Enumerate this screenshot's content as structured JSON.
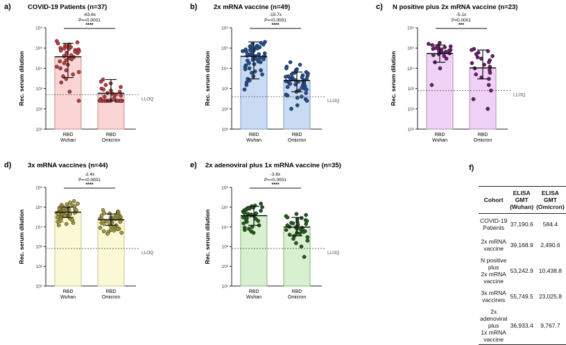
{
  "chart_data": [
    {
      "panel": "a)",
      "type": "scatter",
      "title": "COVID-19 Patients (n=37)",
      "fold": "-63.6x",
      "pvalue": "P=<0.0001",
      "stars": "****",
      "ylabel": "Rec. serum dilution",
      "ylim": [
        10,
        1000000
      ],
      "yscale": "log",
      "yticks": [
        "10¹",
        "10²",
        "10³",
        "10⁴",
        "10⁵",
        "10⁶"
      ],
      "lloq": 500,
      "lloq_label": "LLOQ",
      "categories": [
        "RBD\nWuhan",
        "RBD\nOmicron"
      ],
      "bar_color": "#fbd5d5",
      "bar_edge": "#d08a8a",
      "point_color": "#c0393b",
      "groups": [
        {
          "name": "RBD Wuhan",
          "gmt": 37190.6,
          "sd_low": 3500,
          "sd_high": 170000,
          "values": [
            220000,
            190000,
            170000,
            150000,
            130000,
            120000,
            110000,
            100000,
            95000,
            90000,
            85000,
            80000,
            75000,
            70000,
            65000,
            60000,
            55000,
            50000,
            45000,
            40000,
            36000,
            32000,
            28000,
            25000,
            22000,
            18000,
            15000,
            12000,
            10000,
            8000,
            6500,
            5000,
            4000,
            3000,
            2000,
            700,
            250
          ]
        },
        {
          "name": "RBD Omicron",
          "gmt": 584.4,
          "sd_low": 250,
          "sd_high": 2800,
          "values": [
            2800,
            2200,
            1800,
            1500,
            1200,
            1000,
            900,
            800,
            700,
            600,
            550,
            500,
            450,
            400,
            350,
            300,
            280,
            260,
            250,
            250,
            250,
            250,
            250,
            250,
            250,
            250,
            250,
            250,
            250,
            250,
            250,
            250,
            250,
            250,
            250,
            250,
            250
          ]
        }
      ]
    },
    {
      "panel": "b)",
      "type": "scatter",
      "title": "2x mRNA vaccine (n=49)",
      "fold": "-15.7x",
      "pvalue": "P=<0.0001",
      "stars": "****",
      "ylabel": "Rec. serum dilution",
      "ylim": [
        10,
        1000000
      ],
      "yscale": "log",
      "yticks": [
        "10¹",
        "10²",
        "10³",
        "10⁴",
        "10⁵",
        "10⁶"
      ],
      "lloq": 400,
      "lloq_label": "LLOQ",
      "categories": [
        "RBD\nWuhan",
        "RBD\nOmicron"
      ],
      "bar_color": "#c9daf3",
      "bar_edge": "#7d9bc9",
      "point_color": "#1f4f8f",
      "groups": [
        {
          "name": "RBD Wuhan",
          "gmt": 39168.9,
          "sd_low": 3000,
          "sd_high": 200000,
          "values": [
            200000,
            180000,
            160000,
            150000,
            140000,
            130000,
            120000,
            110000,
            100000,
            95000,
            90000,
            85000,
            80000,
            75000,
            70000,
            65000,
            60000,
            55000,
            50000,
            48000,
            45000,
            42000,
            40000,
            38000,
            36000,
            34000,
            32000,
            30000,
            28000,
            26000,
            24000,
            22000,
            20000,
            18000,
            16000,
            14000,
            12000,
            10000,
            9000,
            8000,
            7000,
            6000,
            5000,
            4000,
            3000,
            2500,
            2000,
            1500,
            900
          ]
        },
        {
          "name": "RBD Omicron",
          "gmt": 2490.6,
          "sd_low": 700,
          "sd_high": 6500,
          "values": [
            20000,
            15000,
            12000,
            10000,
            9000,
            8000,
            7000,
            6500,
            6000,
            5500,
            5000,
            4500,
            4200,
            4000,
            3800,
            3600,
            3400,
            3200,
            3000,
            2800,
            2600,
            2500,
            2400,
            2300,
            2200,
            2100,
            2000,
            1900,
            1800,
            1700,
            1600,
            1500,
            1400,
            1300,
            1200,
            1100,
            1000,
            900,
            800,
            700,
            600,
            500,
            450,
            400,
            350,
            300,
            250,
            150,
            100
          ]
        }
      ]
    },
    {
      "panel": "c)",
      "type": "scatter",
      "title": "N positive plus 2x mRNA vaccine (n=23)",
      "fold": "-5.1x",
      "pvalue": "P=0.0001",
      "stars": "***",
      "ylabel": "Rec. serum dilution",
      "ylim": [
        10,
        1000000
      ],
      "yscale": "log",
      "yticks": [
        "10¹",
        "10²",
        "10³",
        "10⁴",
        "10⁵",
        "10⁶"
      ],
      "lloq": 800,
      "lloq_label": "LLOQ",
      "categories": [
        "RBD\nWuhan",
        "RBD\nOmicron"
      ],
      "bar_color": "#efd2f5",
      "bar_edge": "#b58ac0",
      "point_color": "#6b1a6e",
      "groups": [
        {
          "name": "RBD Wuhan",
          "gmt": 53242.9,
          "sd_low": 20000,
          "sd_high": 140000,
          "values": [
            180000,
            160000,
            140000,
            130000,
            120000,
            110000,
            100000,
            95000,
            90000,
            85000,
            80000,
            75000,
            70000,
            65000,
            60000,
            55000,
            50000,
            45000,
            40000,
            30000,
            20000,
            10000,
            1500
          ]
        },
        {
          "name": "RBD Omicron",
          "gmt": 10438.8,
          "sd_low": 3000,
          "sd_high": 80000,
          "values": [
            90000,
            80000,
            70000,
            60000,
            50000,
            40000,
            35000,
            30000,
            25000,
            20000,
            18000,
            15000,
            12000,
            10000,
            8000,
            6000,
            5000,
            3500,
            3000,
            1500,
            800,
            300,
            100
          ]
        }
      ]
    },
    {
      "panel": "d)",
      "type": "scatter",
      "title": "3x mRNA vaccines (n=44)",
      "fold": "-2.4x",
      "pvalue": "P=<0.0001",
      "stars": "****",
      "ylabel": "Rec. serum dilution",
      "ylim": [
        10,
        1000000
      ],
      "yscale": "log",
      "yticks": [
        "10¹",
        "10²",
        "10³",
        "10⁴",
        "10⁵",
        "10⁶"
      ],
      "lloq": 800,
      "lloq_label": "LLOQ",
      "categories": [
        "RBD\nWuhan",
        "RBD\nOmicron"
      ],
      "bar_color": "#fbf8d6",
      "bar_edge": "#c9c489",
      "point_color": "#a39836",
      "groups": [
        {
          "name": "RBD Wuhan",
          "gmt": 55749.5,
          "sd_low": 30000,
          "sd_high": 100000,
          "values": [
            200000,
            170000,
            150000,
            140000,
            130000,
            120000,
            110000,
            105000,
            100000,
            95000,
            90000,
            85000,
            80000,
            78000,
            75000,
            72000,
            70000,
            68000,
            65000,
            62000,
            60000,
            58000,
            55000,
            52000,
            50000,
            48000,
            46000,
            44000,
            42000,
            40000,
            38000,
            36000,
            34000,
            32000,
            30000,
            28000,
            26000,
            24000,
            22000,
            20000,
            18000,
            16000,
            14000,
            12000
          ]
        },
        {
          "name": "RBD Omicron",
          "gmt": 23025.8,
          "sd_low": 12000,
          "sd_high": 45000,
          "values": [
            70000,
            60000,
            55000,
            50000,
            48000,
            45000,
            42000,
            40000,
            38000,
            36000,
            34000,
            32000,
            30000,
            29000,
            28000,
            27000,
            26000,
            25000,
            24000,
            23000,
            22000,
            21000,
            20000,
            19000,
            18000,
            17000,
            16000,
            15000,
            14000,
            13000,
            12000,
            11000,
            10000,
            9500,
            9000,
            8500,
            8000,
            7500,
            7000,
            6500,
            6000,
            5500,
            5000,
            4500
          ]
        }
      ]
    },
    {
      "panel": "e)",
      "type": "scatter",
      "title": "2x adenoviral plus 1x mRNA vaccine (n=35)",
      "fold": "-3.8x",
      "pvalue": "P=<0.0001",
      "stars": "****",
      "ylabel": "Rec. serum dilution",
      "ylim": [
        10,
        1000000
      ],
      "yscale": "log",
      "yticks": [
        "10¹",
        "10²",
        "10³",
        "10⁴",
        "10⁵",
        "10⁶"
      ],
      "lloq": 800,
      "lloq_label": "LLOQ",
      "categories": [
        "RBD\nWuhan",
        "RBD\nOmicron"
      ],
      "bar_color": "#d8efd0",
      "bar_edge": "#83b576",
      "point_color": "#1f5a1a",
      "groups": [
        {
          "name": "RBD Wuhan",
          "gmt": 36933.4,
          "sd_low": 12000,
          "sd_high": 110000,
          "values": [
            150000,
            120000,
            110000,
            100000,
            95000,
            90000,
            85000,
            80000,
            75000,
            70000,
            65000,
            60000,
            55000,
            50000,
            48000,
            45000,
            42000,
            40000,
            38000,
            35000,
            32000,
            30000,
            28000,
            25000,
            22000,
            20000,
            18000,
            15000,
            12000,
            10000,
            9000,
            8000,
            7000,
            6000,
            5000
          ]
        },
        {
          "name": "RBD Omicron",
          "gmt": 9767.7,
          "sd_low": 3500,
          "sd_high": 30000,
          "values": [
            45000,
            40000,
            35000,
            30000,
            28000,
            25000,
            22000,
            20000,
            18000,
            16000,
            15000,
            14000,
            13000,
            12000,
            11000,
            10000,
            9500,
            9000,
            8500,
            8000,
            7500,
            7000,
            6500,
            6000,
            5500,
            5000,
            4500,
            4000,
            3500,
            3000,
            2500,
            2000,
            1500,
            1000,
            300
          ]
        }
      ]
    }
  ],
  "table": {
    "panel": "f)",
    "headers": [
      "Cohort",
      "ELISA\nGMT\n(Wuhan)",
      "ELISA\nGMT\n(Omicron)"
    ],
    "rows": [
      [
        "COVID-19  Patients",
        "37,190.6",
        "584.4"
      ],
      [
        "2x mRNA vaccine",
        "39,168.9",
        "2,490.6"
      ],
      [
        "N positive  plus\n2x mRNA vaccine",
        "53,242.9",
        "10,438.8"
      ],
      [
        "3x mRNA vaccines",
        "55,749.5",
        "23,025.8"
      ],
      [
        "2x adenoviral  plus\n1x mRNA vaccine",
        "36,933.4",
        "9,767.7"
      ]
    ]
  }
}
